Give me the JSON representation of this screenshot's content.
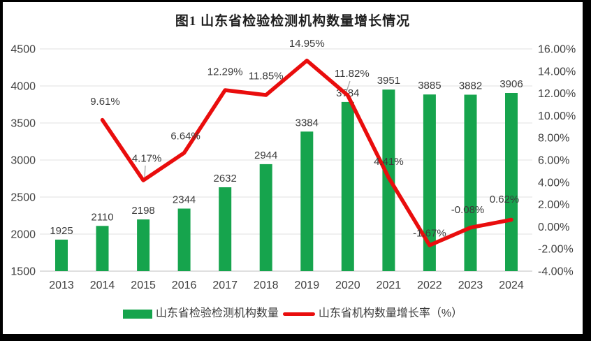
{
  "page": {
    "title": "图1  山东省检验检测机构数量增长情况"
  },
  "chart_data": {
    "type": "bar",
    "subtype": "bar+line combo, dual y-axis",
    "title": "图1  山东省检验检测机构数量增长情况",
    "categories": [
      "2013",
      "2014",
      "2015",
      "2016",
      "2017",
      "2018",
      "2019",
      "2020",
      "2021",
      "2022",
      "2023",
      "2024"
    ],
    "series": [
      {
        "name": "山东省检验检测机构数量",
        "type": "bar",
        "axis": "left",
        "color": "#16A44D",
        "values": [
          1925,
          2110,
          2198,
          2344,
          2632,
          2944,
          3384,
          3784,
          3951,
          3885,
          3882,
          3906
        ],
        "labels": [
          "1925",
          "2110",
          "2198",
          "2344",
          "2632",
          "2944",
          "3384",
          "3784",
          "3951",
          "3885",
          "3882",
          "3906"
        ]
      },
      {
        "name": "山东省机构数量增长率（%）",
        "type": "line",
        "axis": "right",
        "color": "#E90D0D",
        "values": [
          null,
          9.61,
          4.17,
          6.64,
          12.29,
          11.85,
          14.95,
          11.82,
          4.41,
          -1.67,
          -0.08,
          0.62
        ],
        "labels": [
          "",
          "9.61%",
          "4.17%",
          "6.64%",
          "12.29%",
          "11.85%",
          "14.95%",
          "11.82%",
          "4.41%",
          "-1.67%",
          "-0.08%",
          "0.62%"
        ]
      }
    ],
    "left_axis": {
      "min": 1500,
      "max": 4500,
      "tick_step": 500,
      "ticks": [
        "4500",
        "4000",
        "3500",
        "3000",
        "2500",
        "2000",
        "1500"
      ]
    },
    "right_axis": {
      "min": -4,
      "max": 16,
      "tick_step": 2,
      "ticks": [
        "16.00%",
        "14.00%",
        "12.00%",
        "10.00%",
        "8.00%",
        "6.00%",
        "4.00%",
        "2.00%",
        "0.00%",
        "-2.00%",
        "-4.00%"
      ]
    },
    "grid": true,
    "legend_position": "bottom",
    "legend": [
      {
        "label": "山东省检验检测机构数量",
        "color": "#16A44D",
        "type": "bar"
      },
      {
        "label": "山东省机构数量增长率（%）",
        "color": "#E90D0D",
        "type": "line"
      }
    ]
  },
  "colors": {
    "bar_green": "#16A44D",
    "line_red": "#E90D0D",
    "gridline": "#E0E0E0",
    "axis_line": "#BFBFBF",
    "text": "#404040",
    "frame": "#000000",
    "background": "#FFFFFF",
    "leader_line": "#A6A6A6"
  }
}
